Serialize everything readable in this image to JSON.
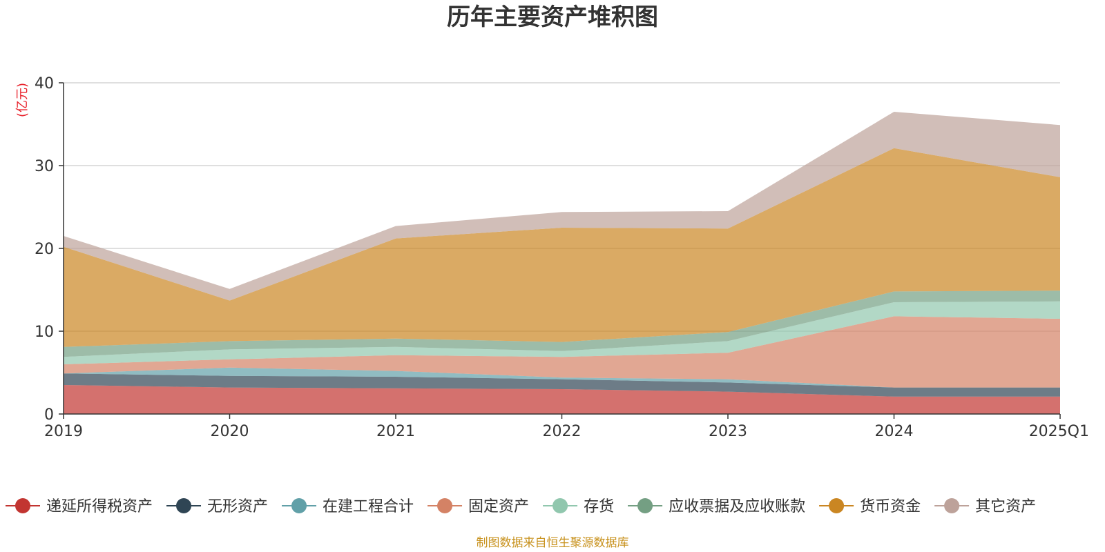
{
  "chart_data": {
    "type": "area",
    "stacked": true,
    "title": "历年主要资产堆积图",
    "ylabel": "(亿元)",
    "source_note": "制图数据来自恒生聚源数据库",
    "categories": [
      "2019",
      "2020",
      "2021",
      "2022",
      "2023",
      "2024",
      "2025Q1"
    ],
    "ylim": [
      0,
      40
    ],
    "yticks": [
      0,
      10,
      20,
      30,
      40
    ],
    "grid": true,
    "legend_position": "bottom",
    "series": [
      {
        "name": "递延所得税资产",
        "color": "#c23531",
        "values": [
          3.5,
          3.2,
          3.1,
          3.0,
          2.7,
          2.1,
          2.1
        ]
      },
      {
        "name": "无形资产",
        "color": "#2f4554",
        "values": [
          1.4,
          1.4,
          1.4,
          1.2,
          1.1,
          1.1,
          1.1
        ]
      },
      {
        "name": "在建工程合计",
        "color": "#61a0a8",
        "values": [
          0.0,
          1.0,
          0.7,
          0.2,
          0.4,
          0.0,
          0.0
        ]
      },
      {
        "name": "固定资产",
        "color": "#d48265",
        "values": [
          1.1,
          1.0,
          1.9,
          2.5,
          3.2,
          8.6,
          8.3
        ]
      },
      {
        "name": "存货",
        "color": "#91c7ae",
        "values": [
          0.9,
          1.2,
          1.0,
          0.7,
          1.4,
          1.7,
          2.1
        ]
      },
      {
        "name": "应收票据及应收账款",
        "color": "#749f83",
        "values": [
          1.2,
          1.0,
          1.0,
          1.1,
          1.1,
          1.3,
          1.3
        ]
      },
      {
        "name": "货币资金",
        "color": "#ca8622",
        "values": [
          12.1,
          4.9,
          12.1,
          13.8,
          12.5,
          17.3,
          13.7
        ]
      },
      {
        "name": "其它资产",
        "color": "#bda29a",
        "values": [
          1.3,
          1.4,
          1.5,
          1.9,
          2.1,
          4.4,
          6.3
        ]
      }
    ]
  }
}
